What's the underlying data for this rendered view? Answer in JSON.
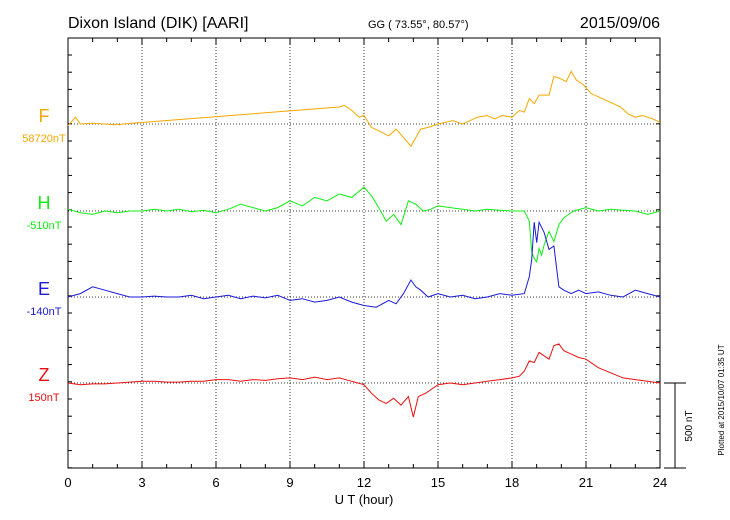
{
  "header": {
    "station": "Dixon Island (DIK)  [AARI]",
    "coords": "GG ( 73.55°,  80.57°)",
    "date": "2015/09/06"
  },
  "footer": {
    "plotted": "Plotted at 2015/10/07 01:35 UT"
  },
  "scale_bar": {
    "label": "500 nT"
  },
  "chart_data": {
    "type": "line",
    "title": "Dixon Island (DIK)  [AARI]",
    "xlabel": "U T (hour)",
    "xlim": [
      0,
      24
    ],
    "xticks": [
      "0",
      "3",
      "6",
      "9",
      "12",
      "15",
      "18",
      "21",
      "24"
    ],
    "grid": true,
    "ylim_nT": [
      -1000,
      1000
    ],
    "series": [
      {
        "name": "F",
        "baseline_label": "58720nT",
        "color": "#f5a800",
        "x": [
          0,
          0.3,
          0.5,
          1,
          1.5,
          1.9,
          2.0,
          2.1,
          2.2,
          11.0,
          11.2,
          11.5,
          11.8,
          12.0,
          12.3,
          12.6,
          13.0,
          13.3,
          13.6,
          13.9,
          14.1,
          14.3,
          14.6,
          15.0,
          15.3,
          15.6,
          16.0,
          16.3,
          16.6,
          17.0,
          17.3,
          17.6,
          18.0,
          18.3,
          18.5,
          18.7,
          18.9,
          19.1,
          19.3,
          19.5,
          19.7,
          19.9,
          20.2,
          20.4,
          20.6,
          20.9,
          21.2,
          21.5,
          21.8,
          22.1,
          22.4,
          22.7,
          23.0,
          23.3,
          23.5,
          23.7,
          24.0
        ],
        "values": [
          -10,
          40,
          0,
          5,
          0,
          -5,
          0,
          -5,
          0,
          100,
          110,
          80,
          40,
          50,
          -20,
          -40,
          -70,
          -30,
          -80,
          -130,
          -80,
          -30,
          -20,
          0,
          10,
          20,
          0,
          20,
          40,
          50,
          30,
          50,
          40,
          80,
          70,
          150,
          120,
          170,
          170,
          170,
          280,
          270,
          250,
          310,
          260,
          230,
          180,
          160,
          140,
          120,
          100,
          60,
          40,
          50,
          40,
          30,
          10
        ]
      },
      {
        "name": "H",
        "baseline_label": "-510nT",
        "color": "#11ee11",
        "x": [
          0,
          0.5,
          1,
          1.5,
          2,
          2.5,
          3,
          3.5,
          4,
          4.5,
          5,
          5.5,
          6,
          6.5,
          7,
          7.5,
          8,
          8.5,
          9,
          9.5,
          10,
          10.5,
          11,
          11.5,
          12,
          12.3,
          12.6,
          12.9,
          13.2,
          13.5,
          13.8,
          14.1,
          14.4,
          14.7,
          15,
          15.5,
          16,
          16.5,
          17,
          17.5,
          18,
          18.5,
          18.7,
          18.8,
          18.9,
          19.0,
          19.1,
          19.2,
          19.3,
          19.5,
          19.7,
          19.9,
          20.1,
          20.3,
          20.5,
          21,
          21.5,
          22,
          22.5,
          23,
          23.5,
          24
        ],
        "values": [
          10,
          -10,
          -20,
          0,
          -10,
          0,
          0,
          10,
          0,
          10,
          -5,
          5,
          -10,
          10,
          40,
          20,
          0,
          20,
          60,
          30,
          80,
          60,
          100,
          80,
          140,
          90,
          20,
          -60,
          -20,
          -80,
          60,
          40,
          0,
          10,
          30,
          20,
          10,
          0,
          10,
          5,
          0,
          0,
          -60,
          -240,
          -280,
          -300,
          -220,
          -260,
          -200,
          -120,
          -180,
          -80,
          -40,
          -20,
          0,
          20,
          0,
          10,
          5,
          0,
          -20,
          0
        ]
      },
      {
        "name": "E",
        "baseline_label": "-140nT",
        "color": "#1a1ad8",
        "x": [
          0,
          0.5,
          1,
          1.5,
          2,
          2.5,
          3,
          3.5,
          4,
          4.5,
          5,
          5.5,
          6,
          6.5,
          7,
          7.5,
          8,
          8.5,
          9,
          9.5,
          10,
          10.5,
          11,
          11.5,
          12,
          12.5,
          13,
          13.3,
          13.6,
          13.9,
          14.1,
          14.3,
          14.6,
          15,
          15.5,
          16,
          16.5,
          17,
          17.5,
          18,
          18.5,
          18.7,
          18.8,
          18.9,
          19.0,
          19.1,
          19.3,
          19.5,
          19.7,
          19.9,
          20.1,
          20.4,
          20.7,
          21,
          21.5,
          22,
          22.5,
          23,
          23.5,
          24
        ],
        "values": [
          0,
          20,
          60,
          40,
          20,
          0,
          0,
          5,
          0,
          0,
          10,
          -10,
          0,
          10,
          -10,
          5,
          -5,
          10,
          -20,
          -10,
          -30,
          -20,
          0,
          -30,
          -50,
          -60,
          -20,
          -40,
          20,
          100,
          60,
          40,
          0,
          20,
          0,
          10,
          -10,
          0,
          20,
          10,
          20,
          120,
          220,
          440,
          320,
          440,
          380,
          280,
          300,
          60,
          40,
          20,
          40,
          20,
          30,
          10,
          0,
          40,
          20,
          0
        ]
      },
      {
        "name": "Z",
        "baseline_label": "150nT",
        "color": "#e81010",
        "x": [
          0,
          0.5,
          1,
          1.5,
          2,
          2.5,
          3,
          3.5,
          4,
          4.5,
          5,
          5.5,
          6,
          6.5,
          7,
          7.5,
          8,
          8.5,
          9,
          9.5,
          10,
          10.5,
          11,
          11.5,
          12,
          12.3,
          12.6,
          12.9,
          13.2,
          13.5,
          13.8,
          14.0,
          14.2,
          14.5,
          14.8,
          15,
          15.5,
          16,
          16.5,
          17,
          17.5,
          18,
          18.3,
          18.5,
          18.7,
          18.9,
          19.1,
          19.3,
          19.5,
          19.7,
          19.9,
          20.1,
          20.4,
          20.7,
          21,
          21.5,
          22,
          22.5,
          23,
          23.5,
          24
        ],
        "values": [
          0,
          -10,
          -5,
          -5,
          0,
          5,
          10,
          10,
          5,
          5,
          10,
          10,
          20,
          20,
          10,
          20,
          15,
          25,
          30,
          20,
          35,
          20,
          30,
          10,
          -10,
          -60,
          -100,
          -120,
          -90,
          -130,
          -80,
          -200,
          -80,
          -60,
          -30,
          -10,
          0,
          -10,
          0,
          10,
          20,
          30,
          40,
          70,
          130,
          120,
          180,
          160,
          140,
          220,
          230,
          190,
          170,
          150,
          140,
          90,
          60,
          30,
          20,
          10,
          0
        ]
      }
    ]
  }
}
